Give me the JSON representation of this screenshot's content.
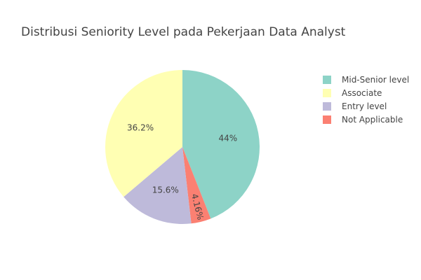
{
  "chart_data": {
    "type": "pie",
    "title": "Distribusi Seniority Level pada Pekerjaan Data Analyst",
    "labels": [
      "Mid-Senior level",
      "Associate",
      "Entry level",
      "Not Applicable"
    ],
    "values": [
      44,
      36.2,
      15.6,
      4.16
    ],
    "value_labels": [
      "44%",
      "36.2%",
      "15.6%",
      "4.16%"
    ],
    "colors": [
      "#8dd3c7",
      "#ffffb3",
      "#bebada",
      "#fb8072"
    ],
    "slice_order": [
      0,
      3,
      2,
      1
    ],
    "direction": "clockwise",
    "rotation_deg": 0,
    "legend_position": "right"
  }
}
